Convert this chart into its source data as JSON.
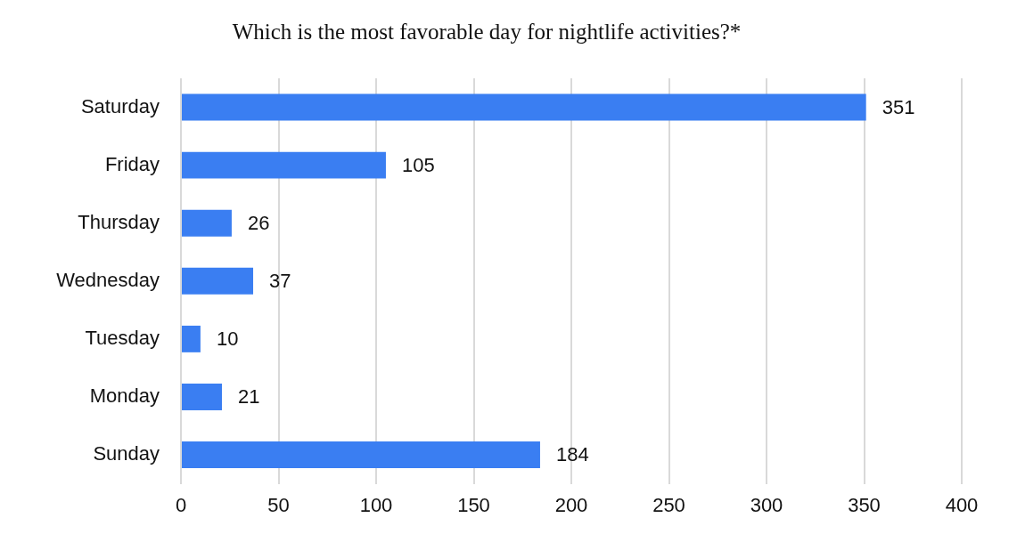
{
  "chart_data": {
    "type": "bar",
    "orientation": "horizontal",
    "title": "Which is the most favorable day for nightlife activities?*",
    "categories": [
      "Saturday",
      "Friday",
      "Thursday",
      "Wednesday",
      "Tuesday",
      "Monday",
      "Sunday"
    ],
    "values": [
      351,
      105,
      26,
      37,
      10,
      21,
      184
    ],
    "color": "#3a7ef2",
    "xlim": [
      0,
      400
    ],
    "xticks": [
      0,
      50,
      100,
      150,
      200,
      250,
      300,
      350,
      400
    ],
    "grid": "x",
    "legend": false,
    "data_labels": true
  }
}
